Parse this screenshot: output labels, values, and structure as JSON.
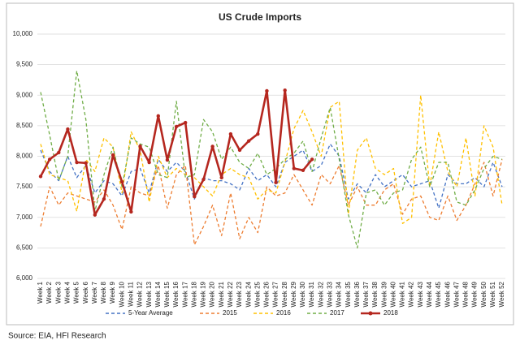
{
  "chart_data": {
    "type": "line",
    "title": "US Crude Imports",
    "categories": [
      "Week 1",
      "Week 2",
      "Week 3",
      "Week 4",
      "Week 5",
      "Week 6",
      "Week 7",
      "Week 8",
      "Week 9",
      "Week 10",
      "Week 11",
      "Week 12",
      "Week 13",
      "Week 14",
      "Week 15",
      "Week 16",
      "Week 17",
      "Week 18",
      "Week 19",
      "Week 20",
      "Week 21",
      "Week 22",
      "Week 23",
      "Week 24",
      "Week 25",
      "Week 26",
      "Week 27",
      "Week 28",
      "Week 29",
      "Week 30",
      "Week 31",
      "Week 32",
      "Week 33",
      "Week 34",
      "Week 35",
      "Week 36",
      "Week 37",
      "Week 38",
      "Week 39",
      "Week 40",
      "Week 41",
      "Week 42",
      "Week 43",
      "Week 44",
      "Week 45",
      "Week 46",
      "Week 47",
      "Week 48",
      "Week 49",
      "Week 50",
      "Week 51",
      "Week 52"
    ],
    "series": [
      {
        "name": "5-Year Average",
        "color": "#4472c4",
        "dash": true,
        "values": [
          8100,
          7750,
          7600,
          8000,
          7650,
          7850,
          7400,
          7600,
          7550,
          7350,
          7750,
          7800,
          7400,
          7950,
          7750,
          7900,
          7750,
          7300,
          7650,
          7600,
          7600,
          7550,
          7450,
          7800,
          7600,
          7700,
          7500,
          7900,
          8000,
          8100,
          7750,
          7850,
          8200,
          8000,
          7300,
          7550,
          7400,
          7700,
          7500,
          7600,
          7700,
          7500,
          7550,
          7600,
          7150,
          7700,
          7550,
          7550,
          7650,
          7500,
          7900,
          7500
        ]
      },
      {
        "name": "2015",
        "color": "#ed7d31",
        "dash": true,
        "values": [
          6850,
          7500,
          7200,
          7400,
          7350,
          7300,
          7250,
          7450,
          7200,
          6800,
          7500,
          7400,
          7350,
          7850,
          7150,
          7700,
          7850,
          6550,
          6850,
          7200,
          6700,
          7400,
          6650,
          7000,
          6750,
          7500,
          7350,
          7400,
          7700,
          7450,
          7200,
          7700,
          7550,
          7850,
          7200,
          7500,
          7200,
          7200,
          7450,
          7550,
          7050,
          7300,
          7350,
          7000,
          6950,
          7350,
          6950,
          7200,
          7550,
          7900,
          7350,
          7950
        ]
      },
      {
        "name": "2016",
        "color": "#ffc000",
        "dash": true,
        "values": [
          8200,
          7700,
          7650,
          7600,
          7100,
          7950,
          7750,
          8300,
          8150,
          7400,
          8400,
          8100,
          7250,
          8000,
          7650,
          7800,
          7700,
          7650,
          7500,
          7350,
          7700,
          7800,
          7700,
          7650,
          7300,
          7450,
          7400,
          7900,
          8450,
          8750,
          8400,
          8000,
          8800,
          8900,
          7050,
          8100,
          8300,
          7800,
          7700,
          7800,
          6900,
          7000,
          9000,
          7500,
          8400,
          7750,
          7500,
          8300,
          7350,
          8500,
          8150,
          7200
        ]
      },
      {
        "name": "2017",
        "color": "#70ad47",
        "dash": true,
        "values": [
          9050,
          8350,
          7600,
          8000,
          9400,
          8600,
          7100,
          7700,
          8150,
          7500,
          8300,
          8200,
          8150,
          7700,
          7650,
          8900,
          7650,
          7700,
          8600,
          8400,
          7950,
          8150,
          7900,
          7800,
          8050,
          7700,
          7800,
          7950,
          8050,
          8250,
          7750,
          8300,
          8800,
          7950,
          7050,
          6500,
          7400,
          7450,
          7200,
          7400,
          7450,
          7950,
          8150,
          7500,
          7900,
          7900,
          7250,
          7200,
          7450,
          7800,
          8000,
          7950
        ]
      },
      {
        "name": "2018",
        "color": "#b5271f",
        "dash": false,
        "markers": true,
        "values": [
          7670,
          7950,
          8060,
          8445,
          7900,
          7890,
          7040,
          7300,
          8020,
          7580,
          7090,
          8165,
          7900,
          8660,
          7940,
          8485,
          8550,
          7340,
          7620,
          8160,
          7650,
          8365,
          8100,
          8250,
          8365,
          9070,
          7570,
          9080,
          7800,
          7770,
          7950,
          null,
          null,
          null,
          null,
          null,
          null,
          null,
          null,
          null,
          null,
          null,
          null,
          null,
          null,
          null,
          null,
          null,
          null,
          null,
          null,
          null
        ]
      }
    ],
    "ylim": [
      6000,
      10000
    ],
    "yticks": [
      {
        "value": 6000,
        "label": "6,000"
      },
      {
        "value": 6500,
        "label": "6,500"
      },
      {
        "value": 7000,
        "label": "7,000"
      },
      {
        "value": 7500,
        "label": "7,500"
      },
      {
        "value": 8000,
        "label": "8,000"
      },
      {
        "value": 8500,
        "label": "8,500"
      },
      {
        "value": 9000,
        "label": "9,000"
      },
      {
        "value": 9500,
        "label": "9,500"
      },
      {
        "value": 10000,
        "label": "10,000"
      }
    ],
    "grid": true,
    "legend": "bottom",
    "source": "Source: EIA, HFI Research"
  }
}
